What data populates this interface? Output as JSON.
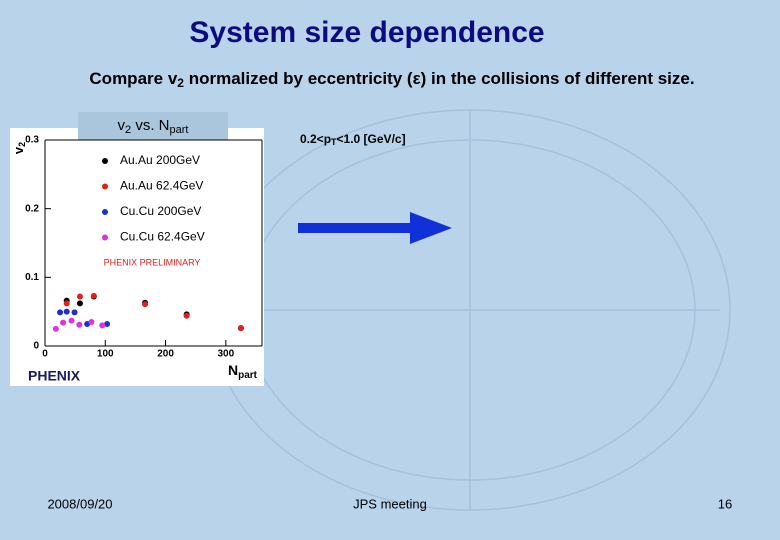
{
  "slide": {
    "title": "System size dependence",
    "subtitle": [
      "Compare v",
      "2",
      " normalized by eccentricity (ε) in the collisions of different size."
    ],
    "plot_label": [
      "v",
      "2",
      " vs. N",
      "part"
    ],
    "cut_label": [
      "0.2<p",
      "T",
      "<1.0 [GeV/c]"
    ],
    "footer": {
      "date": "2008/09/20",
      "event": "JPS meeting",
      "page": "16"
    }
  },
  "chart_data": {
    "type": "scatter",
    "xlabel": [
      "N",
      "part"
    ],
    "ylabel": [
      "v",
      "2"
    ],
    "annotation": "PHENIX PRELIMINARY",
    "logo": "PHENIX",
    "xlim": [
      0,
      360
    ],
    "ylim": [
      0,
      0.3
    ],
    "xticks": [
      0,
      100,
      200,
      300
    ],
    "yticks": [
      0,
      0.1,
      0.2,
      0.3
    ],
    "grid": false,
    "legend": "upper left",
    "series": [
      {
        "name": "Au.Au 200GeV",
        "color": "#000000",
        "x": [
          36,
          58,
          81,
          166,
          235,
          325
        ],
        "values": [
          0.066,
          0.062,
          0.072,
          0.063,
          0.046,
          0.026
        ]
      },
      {
        "name": "Au.Au 62.4GeV",
        "color": "#e0201c",
        "x": [
          36,
          58,
          81,
          166,
          235,
          325
        ],
        "values": [
          0.062,
          0.072,
          0.073,
          0.061,
          0.044,
          0.026
        ]
      },
      {
        "name": "Cu.Cu 200GeV",
        "color": "#1a2ed8",
        "x": [
          25,
          36,
          49,
          70,
          103
        ],
        "values": [
          0.049,
          0.05,
          0.049,
          0.032,
          0.032
        ]
      },
      {
        "name": "Cu.Cu 62.4GeV",
        "color": "#e030e0",
        "x": [
          18,
          30,
          44,
          57,
          77,
          95
        ],
        "values": [
          0.025,
          0.034,
          0.037,
          0.031,
          0.035,
          0.03
        ]
      }
    ]
  }
}
